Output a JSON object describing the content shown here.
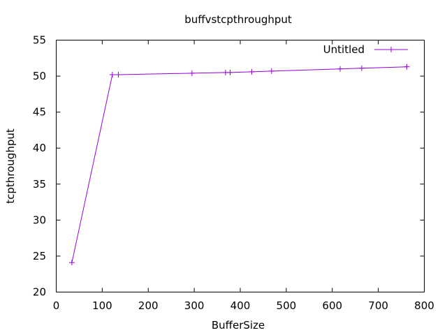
{
  "chart_data": {
    "type": "line",
    "title": "buffvstcpthroughput",
    "xlabel": "BufferSize",
    "ylabel": "tcpthroughput",
    "xlim": [
      0,
      800
    ],
    "ylim": [
      20,
      55
    ],
    "xticks": [
      0,
      100,
      200,
      300,
      400,
      500,
      600,
      700,
      800
    ],
    "yticks": [
      20,
      25,
      30,
      35,
      40,
      45,
      50,
      55
    ],
    "grid": false,
    "legend_position": "top-right",
    "series": [
      {
        "name": "Untitled",
        "color": "#9400d3",
        "marker": "plus",
        "points": [
          {
            "x": 34,
            "y": 24.1
          },
          {
            "x": 122,
            "y": 50.2
          },
          {
            "x": 135,
            "y": 50.2
          },
          {
            "x": 295,
            "y": 50.4
          },
          {
            "x": 368,
            "y": 50.5
          },
          {
            "x": 378,
            "y": 50.5
          },
          {
            "x": 425,
            "y": 50.6
          },
          {
            "x": 468,
            "y": 50.7
          },
          {
            "x": 617,
            "y": 51.0
          },
          {
            "x": 664,
            "y": 51.1
          },
          {
            "x": 762,
            "y": 51.3
          }
        ]
      }
    ]
  }
}
